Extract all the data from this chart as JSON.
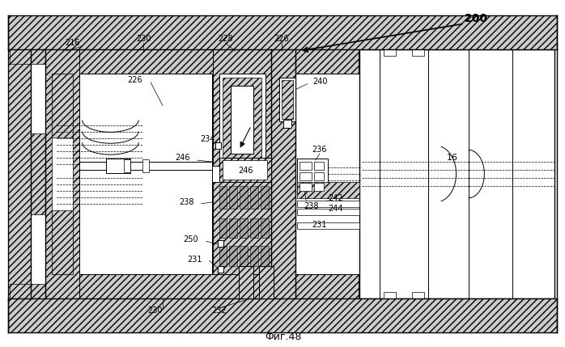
{
  "fig_label": "Фиг.48",
  "background_color": "#ffffff",
  "line_color": "#000000",
  "figsize": [
    6.98,
    4.29
  ],
  "dpi": 100
}
